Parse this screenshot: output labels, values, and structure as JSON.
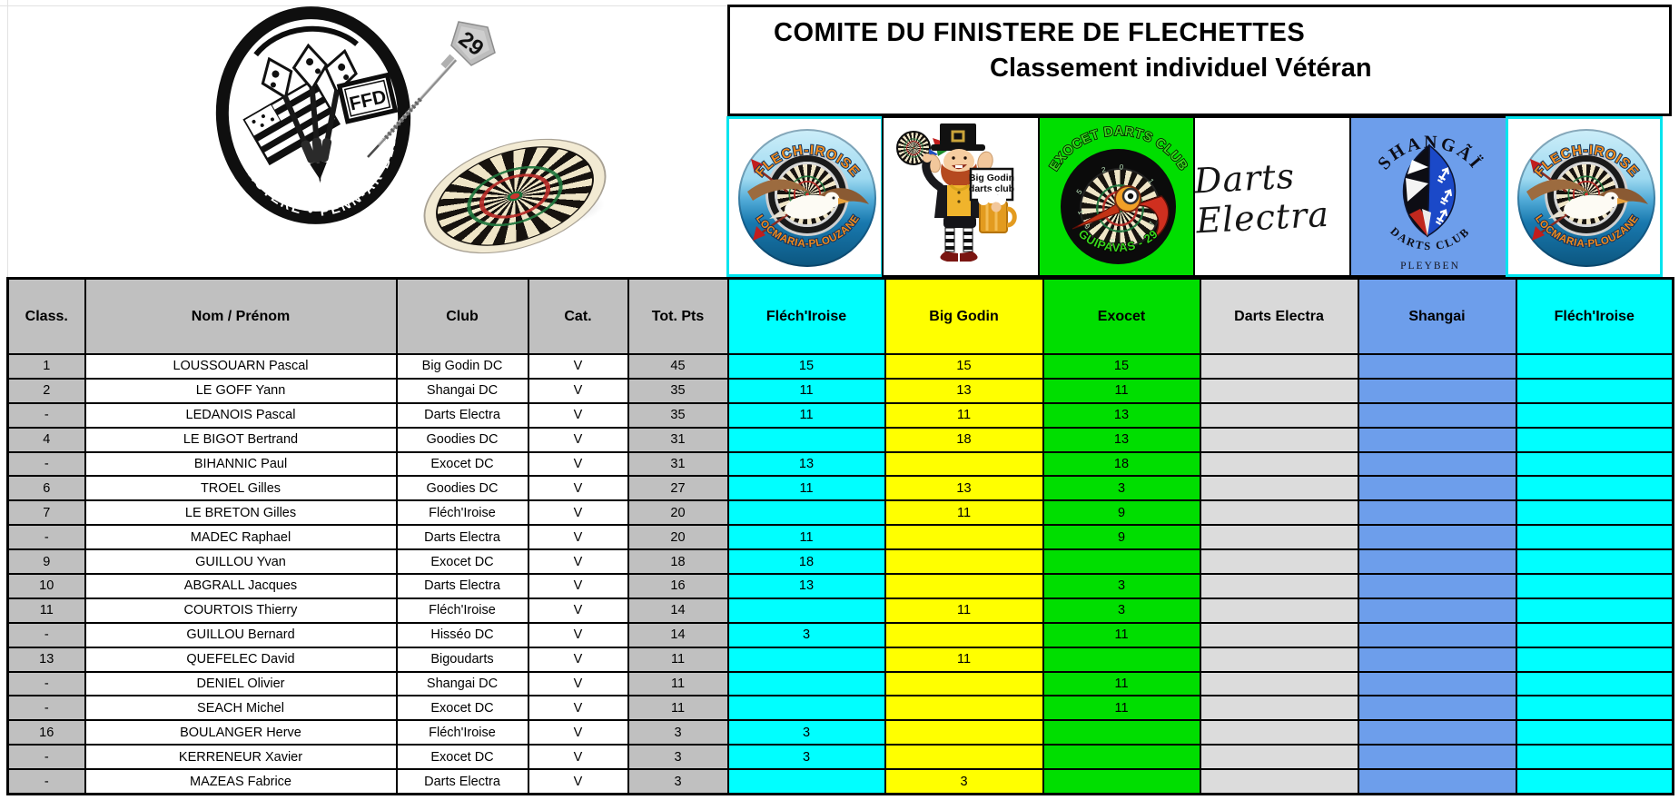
{
  "title": {
    "line1": "COMITE DU FINISTERE DE FLECHETTES",
    "line2": "Classement individuel Vétéran"
  },
  "ffd_logo": {
    "arc_text": "FINISTERE • PENN-AR-BED",
    "ffd": "FFD",
    "flight_number": "29"
  },
  "club_logos": [
    {
      "key": "flechiroise",
      "arc_top": "FLECH-IROISE",
      "arc_bottom": "LOCMARIA-PLOUZANE"
    },
    {
      "key": "biggodin",
      "sign_line1": "Big Godin",
      "sign_line2": "darts club"
    },
    {
      "key": "exocet",
      "arc_top": "EXOCET DARTS CLUB",
      "arc_bottom": "GUIPAVAS - 29",
      "dial_top": "5 20 1",
      "dial_bottom": "19 3 17"
    },
    {
      "key": "dartselectra",
      "script": "Darts Electra"
    },
    {
      "key": "shangai",
      "arc_top": "SHANGÃÏ",
      "arc_bottom": "DARTS CLUB",
      "town": "PLEYBEN"
    },
    {
      "key": "flechiroise2",
      "arc_top": "FLECH-IROISE",
      "arc_bottom": "LOCMARIA-PLOUZANE"
    }
  ],
  "table": {
    "headers": [
      {
        "label": "Class.",
        "bg": "#C0C0C0"
      },
      {
        "label": "Nom / Prénom",
        "bg": "#C0C0C0"
      },
      {
        "label": "Club",
        "bg": "#C0C0C0"
      },
      {
        "label": "Cat.",
        "bg": "#C0C0C0"
      },
      {
        "label": "Tot. Pts",
        "bg": "#C0C0C0"
      },
      {
        "label": "Fléch'Iroise",
        "bg": "#00FFFF"
      },
      {
        "label": "Big Godin",
        "bg": "#FFFF00"
      },
      {
        "label": "Exocet",
        "bg": "#00DE00"
      },
      {
        "label": "Darts Electra",
        "bg": "#D9D9D9"
      },
      {
        "label": "Shangai",
        "bg": "#6D9EEB"
      },
      {
        "label": "Fléch'Iroise",
        "bg": "#00FFFF"
      }
    ],
    "point_column_bgs": [
      "#00FFFF",
      "#FFFF00",
      "#00DE00",
      "#DCDCDC",
      "#6D9EEB",
      "#00FFFF"
    ],
    "rows": [
      {
        "rank": "1",
        "name": "LOUSSOUARN Pascal",
        "club": "Big Godin DC",
        "cat": "V",
        "total": "45",
        "pts": [
          "15",
          "15",
          "15",
          "",
          "",
          ""
        ]
      },
      {
        "rank": "2",
        "name": "LE GOFF Yann",
        "club": "Shangai DC",
        "cat": "V",
        "total": "35",
        "pts": [
          "11",
          "13",
          "11",
          "",
          "",
          ""
        ]
      },
      {
        "rank": "-",
        "name": "LEDANOIS Pascal",
        "club": "Darts Electra",
        "cat": "V",
        "total": "35",
        "pts": [
          "11",
          "11",
          "13",
          "",
          "",
          ""
        ]
      },
      {
        "rank": "4",
        "name": "LE BIGOT Bertrand",
        "club": "Goodies DC",
        "cat": "V",
        "total": "31",
        "pts": [
          "",
          "18",
          "13",
          "",
          "",
          ""
        ]
      },
      {
        "rank": "-",
        "name": "BIHANNIC Paul",
        "club": "Exocet DC",
        "cat": "V",
        "total": "31",
        "pts": [
          "13",
          "",
          "18",
          "",
          "",
          ""
        ]
      },
      {
        "rank": "6",
        "name": "TROEL Gilles",
        "club": "Goodies DC",
        "cat": "V",
        "total": "27",
        "pts": [
          "11",
          "13",
          "3",
          "",
          "",
          ""
        ]
      },
      {
        "rank": "7",
        "name": "LE BRETON Gilles",
        "club": "Fléch'Iroise",
        "cat": "V",
        "total": "20",
        "pts": [
          "",
          "11",
          "9",
          "",
          "",
          ""
        ]
      },
      {
        "rank": "-",
        "name": "MADEC Raphael",
        "club": "Darts Electra",
        "cat": "V",
        "total": "20",
        "pts": [
          "11",
          "",
          "9",
          "",
          "",
          ""
        ]
      },
      {
        "rank": "9",
        "name": "GUILLOU Yvan",
        "club": "Exocet DC",
        "cat": "V",
        "total": "18",
        "pts": [
          "18",
          "",
          "",
          "",
          "",
          ""
        ]
      },
      {
        "rank": "10",
        "name": "ABGRALL Jacques",
        "club": "Darts Electra",
        "cat": "V",
        "total": "16",
        "pts": [
          "13",
          "",
          "3",
          "",
          "",
          ""
        ]
      },
      {
        "rank": "11",
        "name": "COURTOIS Thierry",
        "club": "Fléch'Iroise",
        "cat": "V",
        "total": "14",
        "pts": [
          "",
          "11",
          "3",
          "",
          "",
          ""
        ]
      },
      {
        "rank": "-",
        "name": "GUILLOU Bernard",
        "club": "Hisséo DC",
        "cat": "V",
        "total": "14",
        "pts": [
          "3",
          "",
          "11",
          "",
          "",
          ""
        ]
      },
      {
        "rank": "13",
        "name": "QUEFELEC David",
        "club": "Bigoudarts",
        "cat": "V",
        "total": "11",
        "pts": [
          "",
          "11",
          "",
          "",
          "",
          ""
        ]
      },
      {
        "rank": "-",
        "name": "DENIEL Olivier",
        "club": "Shangai DC",
        "cat": "V",
        "total": "11",
        "pts": [
          "",
          "",
          "11",
          "",
          "",
          ""
        ]
      },
      {
        "rank": "-",
        "name": "SEACH Michel",
        "club": "Exocet DC",
        "cat": "V",
        "total": "11",
        "pts": [
          "",
          "",
          "11",
          "",
          "",
          ""
        ]
      },
      {
        "rank": "16",
        "name": "BOULANGER Herve",
        "club": "Fléch'Iroise",
        "cat": "V",
        "total": "3",
        "pts": [
          "3",
          "",
          "",
          "",
          "",
          ""
        ]
      },
      {
        "rank": "-",
        "name": "KERRENEUR Xavier",
        "club": "Exocet DC",
        "cat": "V",
        "total": "3",
        "pts": [
          "3",
          "",
          "",
          "",
          "",
          ""
        ]
      },
      {
        "rank": "-",
        "name": "MAZEAS Fabrice",
        "club": "Darts Electra",
        "cat": "V",
        "total": "3",
        "pts": [
          "",
          "3",
          "",
          "",
          "",
          ""
        ]
      }
    ]
  },
  "colors": {
    "cyan": "#00FFFF",
    "yellow": "#FFFF00",
    "green": "#00DE00",
    "electra_gray": "#DCDCDC",
    "cornflower": "#6D9EEB",
    "header_gray": "#C0C0C0"
  }
}
